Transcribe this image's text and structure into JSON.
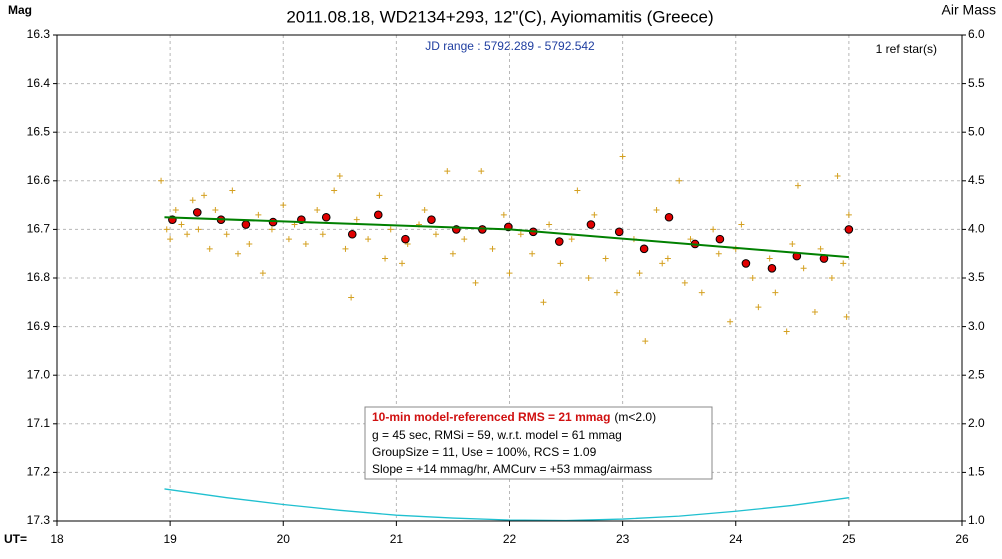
{
  "chart_data": {
    "type": "scatter",
    "title": "2011.08.18, WD2134+293, 12\"(C), Ayiomamitis (Greece)",
    "ylabel": "Mag",
    "y2label": "Air Mass",
    "xlabel": "UT=",
    "subtitle": "JD range : 5792.289 - 5792.542",
    "ref_note": "1 ref star(s)",
    "info_box": {
      "headline": "10-min model-referenced RMS = 21 mmag",
      "headline_note": "(m<2.0)",
      "lines": [
        "g = 45 sec, RMSi = 59, w.r.t. model = 61 mmag",
        "GroupSize = 11, Use = 100%, RCS = 1.09",
        "Slope = +14 mmag/hr, AMCurv = +53 mmag/airmass"
      ]
    },
    "xlim": [
      18,
      26
    ],
    "xticks": [
      18,
      19,
      20,
      21,
      22,
      23,
      24,
      25,
      26
    ],
    "ylim": [
      17.3,
      16.3
    ],
    "yticks": [
      16.3,
      16.4,
      16.5,
      16.6,
      16.7,
      16.8,
      16.9,
      {
        "value": 17,
        "label": "17.0"
      },
      17.1,
      17.2,
      17.3
    ],
    "y2lim": [
      1,
      6
    ],
    "y2ticks": [
      {
        "value": 6,
        "label": "6.0"
      },
      5.5,
      {
        "value": 5,
        "label": "5.0"
      },
      4.5,
      {
        "value": 4,
        "label": "4.0"
      },
      3.5,
      {
        "value": 3,
        "label": "3.0"
      },
      2.5,
      {
        "value": 2,
        "label": "2.0"
      },
      1.5,
      {
        "value": 1,
        "label": "1.0"
      }
    ],
    "grid": true,
    "series": [
      {
        "kind": "cross",
        "color": "#d4a020",
        "x": [
          18.92,
          18.97,
          19.0,
          19.05,
          19.1,
          19.15,
          19.2,
          19.25,
          19.3,
          19.35,
          19.4,
          19.5,
          19.55,
          19.6,
          19.7,
          19.78,
          19.82,
          19.9,
          20.0,
          20.05,
          20.1,
          20.2,
          20.3,
          20.35,
          20.45,
          20.5,
          20.55,
          20.6,
          20.65,
          20.75,
          20.85,
          20.9,
          20.95,
          21.05,
          21.1,
          21.2,
          21.25,
          21.35,
          21.45,
          21.5,
          21.6,
          21.7,
          21.75,
          21.85,
          21.95,
          22.0,
          22.1,
          22.2,
          22.3,
          22.35,
          22.45,
          22.55,
          22.6,
          22.7,
          22.75,
          22.85,
          22.95,
          23.0,
          23.1,
          23.15,
          23.2,
          23.3,
          23.35,
          23.4,
          23.5,
          23.55,
          23.6,
          23.7,
          23.8,
          23.85,
          23.95,
          24.0,
          24.05,
          24.15,
          24.2,
          24.3,
          24.35,
          24.45,
          24.5,
          24.55,
          24.6,
          24.7,
          24.75,
          24.85,
          24.9,
          24.95,
          24.98,
          25.0
        ],
        "values": [
          16.6,
          16.7,
          16.72,
          16.66,
          16.69,
          16.71,
          16.64,
          16.7,
          16.63,
          16.74,
          16.66,
          16.71,
          16.62,
          16.75,
          16.73,
          16.67,
          16.79,
          16.7,
          16.65,
          16.72,
          16.69,
          16.73,
          16.66,
          16.71,
          16.62,
          16.59,
          16.74,
          16.84,
          16.68,
          16.72,
          16.63,
          16.76,
          16.7,
          16.77,
          16.73,
          16.69,
          16.66,
          16.71,
          16.58,
          16.75,
          16.72,
          16.81,
          16.58,
          16.74,
          16.67,
          16.79,
          16.71,
          16.75,
          16.85,
          16.69,
          16.77,
          16.72,
          16.62,
          16.8,
          16.67,
          16.76,
          16.83,
          16.55,
          16.72,
          16.79,
          16.93,
          16.66,
          16.77,
          16.76,
          16.6,
          16.81,
          16.72,
          16.83,
          16.7,
          16.75,
          16.89,
          16.74,
          16.69,
          16.8,
          16.86,
          16.76,
          16.83,
          16.91,
          16.73,
          16.61,
          16.78,
          16.87,
          16.74,
          16.8,
          16.59,
          16.77,
          16.88,
          16.67
        ]
      },
      {
        "kind": "dot",
        "color": "#e00000",
        "x": [
          19.02,
          19.24,
          19.45,
          19.67,
          19.91,
          20.16,
          20.38,
          20.61,
          20.84,
          21.08,
          21.31,
          21.53,
          21.76,
          21.99,
          22.21,
          22.44,
          22.72,
          22.97,
          23.19,
          23.41,
          23.64,
          23.86,
          24.09,
          24.32,
          24.54,
          24.78,
          25.0
        ],
        "values": [
          16.68,
          16.665,
          16.68,
          16.69,
          16.685,
          16.68,
          16.675,
          16.71,
          16.67,
          16.72,
          16.68,
          16.7,
          16.7,
          16.695,
          16.705,
          16.725,
          16.69,
          16.705,
          16.74,
          16.675,
          16.73,
          16.72,
          16.77,
          16.78,
          16.755,
          16.76,
          16.7
        ]
      },
      {
        "kind": "line",
        "color": "#008000",
        "x": [
          18.95,
          22,
          25
        ],
        "values": [
          16.675,
          16.7,
          16.757
        ]
      },
      {
        "kind": "line",
        "color": "#20c0d0",
        "axis": "y2",
        "x": [
          18.95,
          19.5,
          20,
          20.5,
          21,
          21.5,
          22,
          22.5,
          23,
          23.5,
          24,
          24.5,
          25
        ],
        "values": [
          1.33,
          1.24,
          1.17,
          1.11,
          1.06,
          1.03,
          1.01,
          1.005,
          1.02,
          1.05,
          1.1,
          1.16,
          1.24
        ]
      }
    ]
  }
}
